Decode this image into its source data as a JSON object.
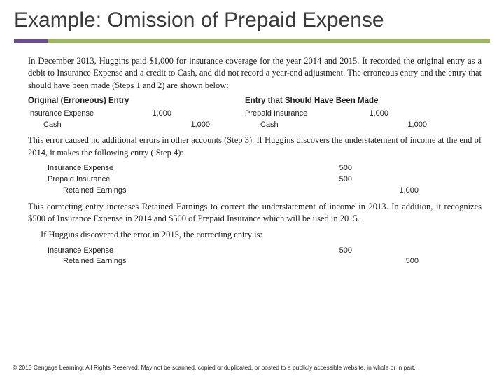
{
  "title": "Example: Omission of Prepaid Expense",
  "accent": {
    "purple": "#6b4a97",
    "green": "#9bb957"
  },
  "intro": "In December 2013, Huggins paid $1,000 for insurance coverage for the year 2014 and 2015. It recorded the original entry as a debit to Insurance Expense and a credit to Cash, and did not record a year-end adjustment. The erroneous entry and the entry that should have been made (Steps 1 and 2) are shown below:",
  "labels": {
    "left": "Original (Erroneous) Entry",
    "right": "Entry that Should Have Been Made"
  },
  "entry_pair": {
    "left": {
      "debit_account": "Insurance Expense",
      "debit_amount": "1,000",
      "credit_account": "Cash",
      "credit_amount": "1,000"
    },
    "right": {
      "debit_account": "Prepaid Insurance",
      "debit_amount": "1,000",
      "credit_account": "Cash",
      "credit_amount": "1,000"
    }
  },
  "mid_para": "This error caused no additional errors in other accounts (Step 3). If Huggins discovers the understatement of income at the end of 2014, it makes the following entry ( Step 4):",
  "correcting_2014": [
    {
      "account": "Insurance Expense",
      "debit": "500",
      "credit": ""
    },
    {
      "account": "Prepaid Insurance",
      "debit": "500",
      "credit": ""
    },
    {
      "account": "Retained Earnings",
      "debit": "",
      "credit": "1,000",
      "sub": true
    }
  ],
  "explain_para": "This correcting entry increases Retained Earnings to correct the understatement of income in 2013. In addition, it recognizes $500 of Insurance Expense in 2014 and $500 of Prepaid Insurance which will be used in 2015.",
  "final_para": "If Huggins discovered the error in 2015, the correcting entry is:",
  "correcting_2015": [
    {
      "account": "Insurance Expense",
      "debit": "500",
      "credit": ""
    },
    {
      "account": "Retained Earnings",
      "debit": "",
      "credit": "500",
      "sub": true
    }
  ],
  "footer": "© 2013 Cengage Learning. All Rights Reserved. May not be scanned, copied or duplicated, or posted to a publicly accessible website, in whole or in part."
}
